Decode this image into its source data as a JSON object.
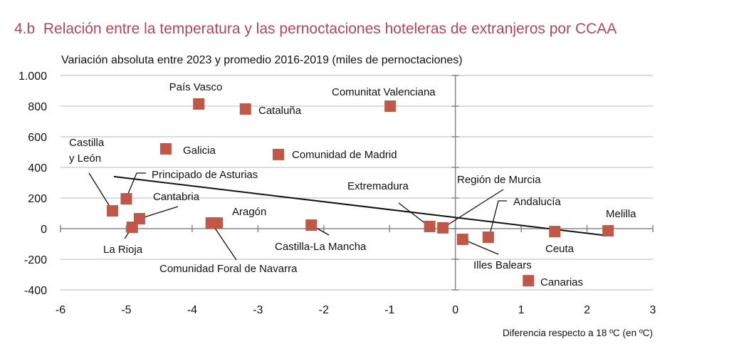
{
  "title": "4.b  Relación entre la temperatura y las pernoctaciones hoteleras de extranjeros por CCAA",
  "chart_data": {
    "type": "scatter",
    "title": "4.b  Relación entre la temperatura y las pernoctaciones hoteleras de extranjeros por CCAA",
    "subtitle": "Variación absoluta entre 2023 y promedio 2016-2019 (miles de pernoctaciones)",
    "xlabel": "Diferencia respecto a 18 ºC (en ºC)",
    "ylabel": "",
    "xlim": [
      -6,
      3
    ],
    "ylim": [
      -400,
      1000
    ],
    "xticks": [
      -6,
      -5,
      -4,
      -3,
      -2,
      -1,
      0,
      1,
      2,
      3
    ],
    "xtick_labels": [
      "-6",
      "-5",
      "-4",
      "-3",
      "-2",
      "-1",
      "0",
      "1",
      "2",
      "3"
    ],
    "yticks": [
      -400,
      -200,
      0,
      200,
      400,
      600,
      800,
      1000
    ],
    "ytick_labels": [
      "-400",
      "-200",
      "0",
      "200",
      "400",
      "600",
      "800",
      "1.000"
    ],
    "grid": "horizontal",
    "marker_color": "#c0584a",
    "points": [
      {
        "label": "País Vasco",
        "x": -3.9,
        "y": 814
      },
      {
        "label": "Cataluña",
        "x": -3.19,
        "y": 781
      },
      {
        "label": "Comunitat Valenciana",
        "x": -0.99,
        "y": 800
      },
      {
        "label": "Galicia",
        "x": -4.4,
        "y": 521
      },
      {
        "label": "Comunidad de Madrid",
        "x": -2.69,
        "y": 484
      },
      {
        "label": "Castilla y León",
        "x": -5.21,
        "y": 116
      },
      {
        "label": "Principado de Asturias",
        "x": -5.0,
        "y": 195
      },
      {
        "label": "Cantabria",
        "x": -4.8,
        "y": 65
      },
      {
        "label": "La Rioja",
        "x": -4.91,
        "y": 9
      },
      {
        "label": "Aragón",
        "x": -3.62,
        "y": 37
      },
      {
        "label": "Comunidad Foral de Navarra",
        "x": -3.71,
        "y": 37
      },
      {
        "label": "Castilla-La Mancha",
        "x": -2.19,
        "y": 23
      },
      {
        "label": "Extremadura",
        "x": -0.39,
        "y": 14
      },
      {
        "label": "Región de Murcia",
        "x": -0.19,
        "y": 5
      },
      {
        "label": "Andalucía",
        "x": 0.11,
        "y": -70
      },
      {
        "label": "Illes Balears",
        "x": 0.5,
        "y": -56
      },
      {
        "label": "Ceuta",
        "x": 1.51,
        "y": -19
      },
      {
        "label": "Melilla",
        "x": 2.32,
        "y": -14
      },
      {
        "label": "Canarias",
        "x": 1.11,
        "y": -340
      }
    ],
    "trendline": {
      "x": [
        -5.19,
        2.31
      ],
      "y": [
        340,
        -46
      ]
    }
  }
}
